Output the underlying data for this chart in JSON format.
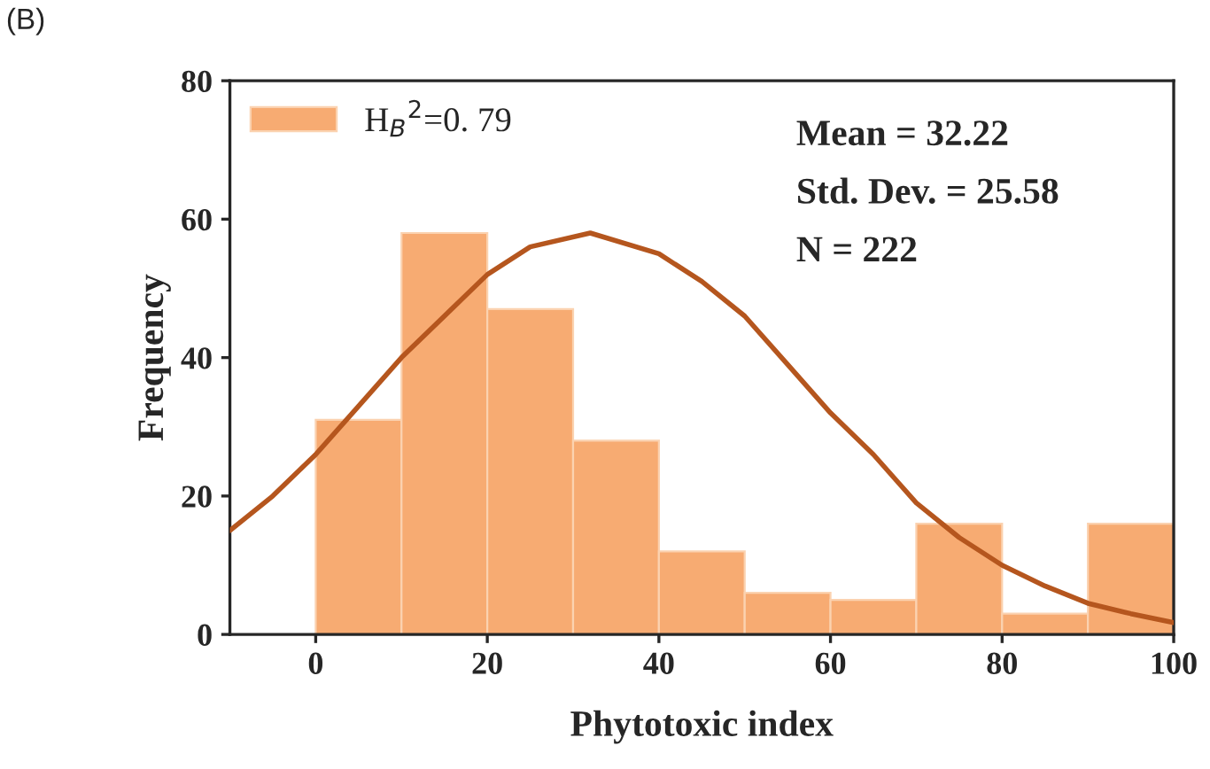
{
  "chart_data": {
    "type": "histogram",
    "xlabel": "Phytotoxic index",
    "ylabel": "Frequency",
    "xlim": [
      -10,
      100
    ],
    "xticks": [
      0,
      20,
      40,
      60,
      80,
      100
    ],
    "ylim": [
      0,
      80
    ],
    "yticks": [
      0,
      20,
      40,
      60,
      80
    ],
    "grid": false,
    "legend": "top left",
    "annotations": [
      "(B)",
      "Mean = 32.22",
      "Std. Dev. = 25.58",
      "N = 222"
    ],
    "series": [
      {
        "type": "histogram",
        "name": "H$_{B}$$^{2}$=0. 79",
        "color": "#f7ab72",
        "bins": [
          0,
          10,
          20,
          30,
          40,
          50,
          60,
          70,
          80,
          90,
          100
        ],
        "values": [
          31,
          58,
          47,
          28,
          12,
          6,
          5,
          16,
          3,
          16
        ]
      },
      {
        "type": "line",
        "color": "#b5561e",
        "x": [
          -10,
          -5,
          0,
          5,
          10,
          15,
          20,
          25,
          32,
          40,
          45,
          50,
          55,
          60,
          65,
          70,
          75,
          80,
          85,
          90,
          95,
          100
        ],
        "values": [
          15,
          20,
          26,
          33,
          40,
          46,
          52,
          56,
          58,
          55,
          51,
          46,
          39,
          32,
          26,
          19,
          14,
          10,
          7,
          4.5,
          3,
          1.7
        ]
      }
    ]
  }
}
